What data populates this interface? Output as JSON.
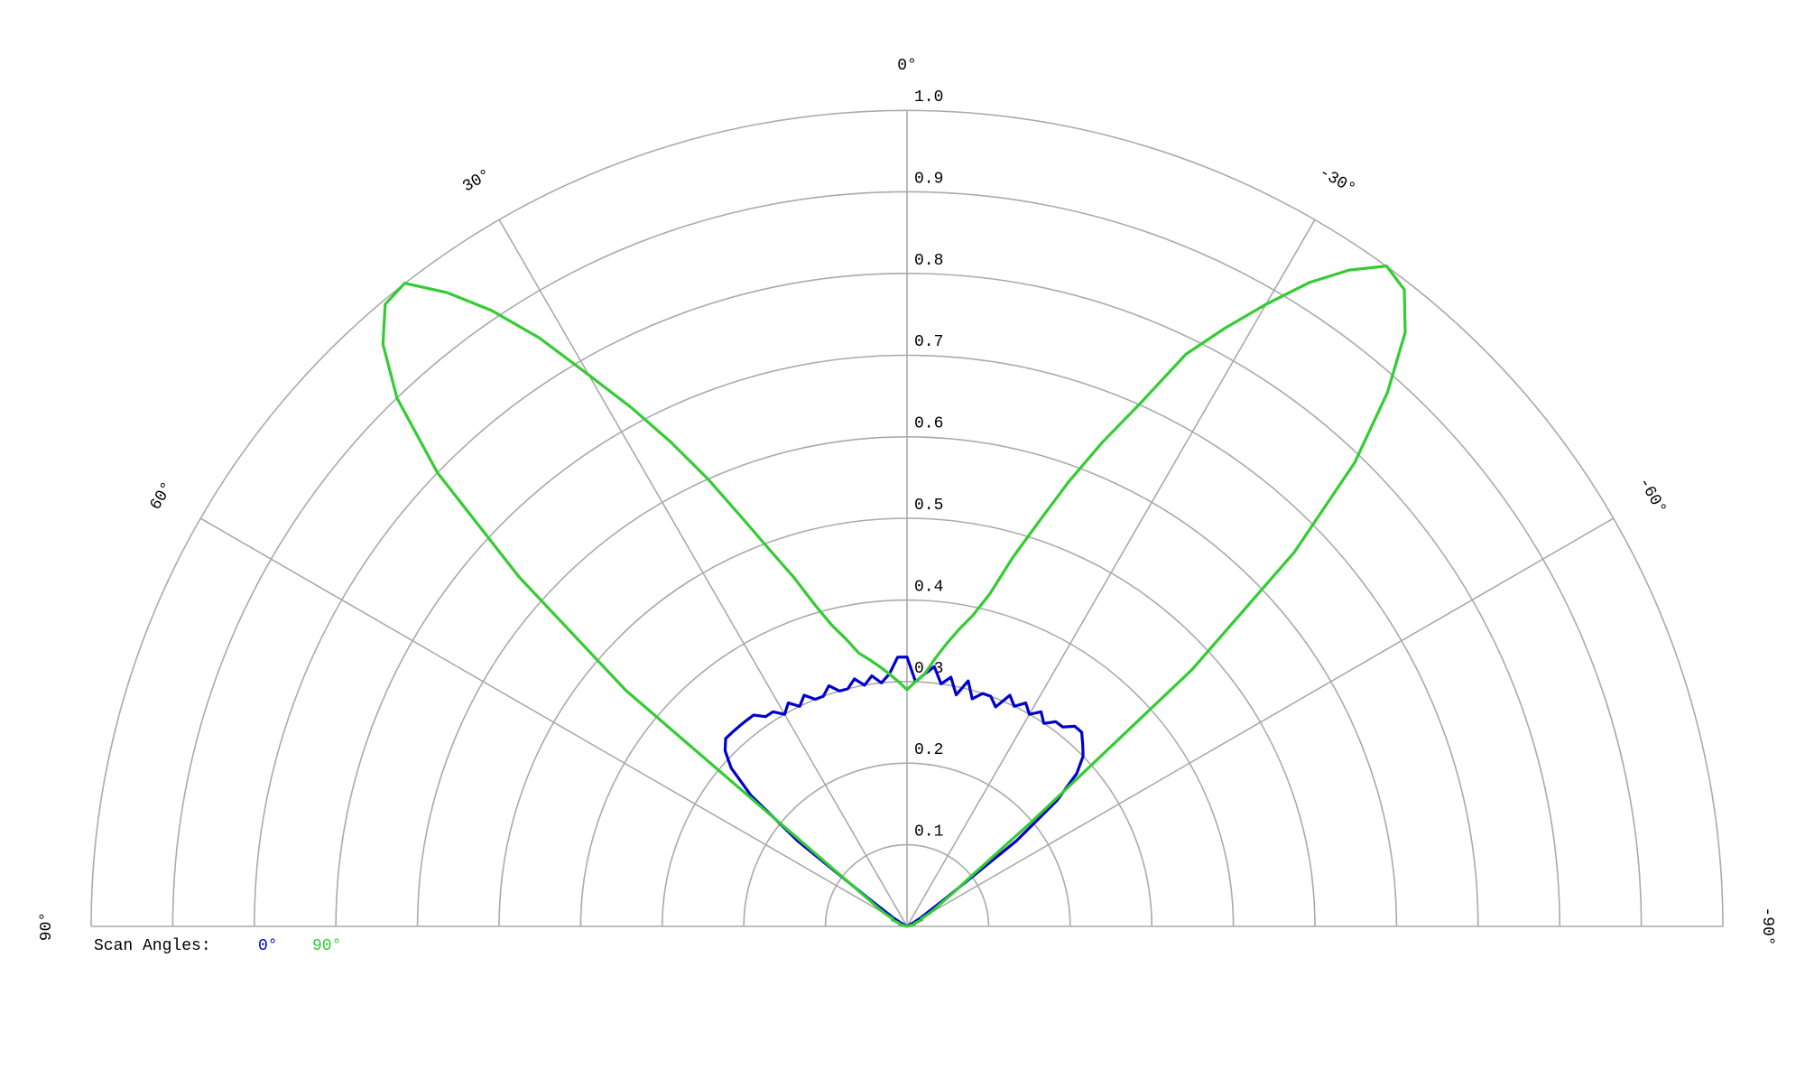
{
  "chart_data": {
    "type": "polar",
    "theta": [
      -90,
      -88,
      -86,
      -84,
      -82,
      -80,
      -78,
      -76,
      -74,
      -72,
      -70,
      -68,
      -66,
      -64,
      -62,
      -60,
      -58,
      -56,
      -54,
      -52,
      -50,
      -48,
      -46,
      -44,
      -42,
      -40,
      -38,
      -36,
      -34,
      -32,
      -30,
      -28,
      -26,
      -24,
      -22,
      -20,
      -18,
      -16,
      -14,
      -12,
      -10,
      -8,
      -6,
      -4,
      -2,
      0,
      2,
      4,
      6,
      8,
      10,
      12,
      14,
      16,
      18,
      20,
      22,
      24,
      26,
      28,
      30,
      32,
      34,
      36,
      38,
      40,
      42,
      44,
      46,
      48,
      50,
      52,
      54,
      56,
      58,
      60,
      62,
      64,
      66,
      68,
      70,
      72,
      74,
      76,
      78,
      80,
      82,
      84,
      86,
      88,
      90
    ],
    "thetalim": [
      -90,
      90
    ],
    "thetaticks": [
      {
        "value": -90,
        "label": "-90°"
      },
      {
        "value": -60,
        "label": "-60°"
      },
      {
        "value": -30,
        "label": "-30°"
      },
      {
        "value": 0,
        "label": "0°"
      },
      {
        "value": 30,
        "label": "30°"
      },
      {
        "value": 60,
        "label": "60°"
      },
      {
        "value": 90,
        "label": "90°"
      }
    ],
    "rlim": [
      0,
      1
    ],
    "rticks": [
      0.1,
      0.2,
      0.3,
      0.4,
      0.5,
      0.6,
      0.7,
      0.8,
      0.9,
      {
        "value": 1,
        "label": "1.0"
      }
    ],
    "legend_title": "Scan Angles:",
    "series": [
      {
        "name": "0°",
        "color": "#0000cc",
        "values": [
          0,
          0,
          0,
          0,
          0,
          0,
          0,
          0,
          0,
          0,
          0,
          0,
          0,
          0,
          0,
          0.01,
          0.02,
          0.03,
          0.06,
          0.17,
          0.24,
          0.28,
          0.3,
          0.31,
          0.32,
          0.32,
          0.31,
          0.31,
          0.3,
          0.31,
          0.3,
          0.31,
          0.3,
          0.31,
          0.29,
          0.3,
          0.3,
          0.29,
          0.31,
          0.29,
          0.31,
          0.3,
          0.32,
          0.31,
          0.3,
          0.33,
          0.33,
          0.31,
          0.3,
          0.31,
          0.3,
          0.31,
          0.3,
          0.3,
          0.31,
          0.3,
          0.3,
          0.31,
          0.3,
          0.31,
          0.3,
          0.31,
          0.31,
          0.32,
          0.32,
          0.32,
          0.32,
          0.32,
          0.31,
          0.29,
          0.25,
          0.17,
          0.06,
          0.03,
          0.02,
          0.01,
          0,
          0,
          0,
          0,
          0,
          0,
          0,
          0,
          0,
          0,
          0,
          0,
          0,
          0,
          0
        ]
      },
      {
        "name": "90°",
        "color": "#33cc33",
        "values": [
          0,
          0,
          0,
          0,
          0,
          0,
          0,
          0,
          0.01,
          0.01,
          0.01,
          0.01,
          0.02,
          0.02,
          0.02,
          0.03,
          0.04,
          0.05,
          0.07,
          0.1,
          0.2,
          0.47,
          0.66,
          0.79,
          0.88,
          0.95,
          0.99,
          1.0,
          0.97,
          0.93,
          0.88,
          0.83,
          0.78,
          0.7,
          0.64,
          0.58,
          0.52,
          0.47,
          0.42,
          0.39,
          0.37,
          0.35,
          0.33,
          0.31,
          0.3,
          0.29,
          0.3,
          0.31,
          0.32,
          0.33,
          0.34,
          0.36,
          0.38,
          0.41,
          0.45,
          0.49,
          0.54,
          0.6,
          0.66,
          0.72,
          0.78,
          0.85,
          0.91,
          0.96,
          1.0,
          0.995,
          0.96,
          0.9,
          0.8,
          0.64,
          0.45,
          0.12,
          0.07,
          0.05,
          0.04,
          0.03,
          0.02,
          0.02,
          0.02,
          0.01,
          0.01,
          0.01,
          0.01,
          0,
          0,
          0,
          0,
          0,
          0,
          0,
          0
        ]
      }
    ]
  }
}
